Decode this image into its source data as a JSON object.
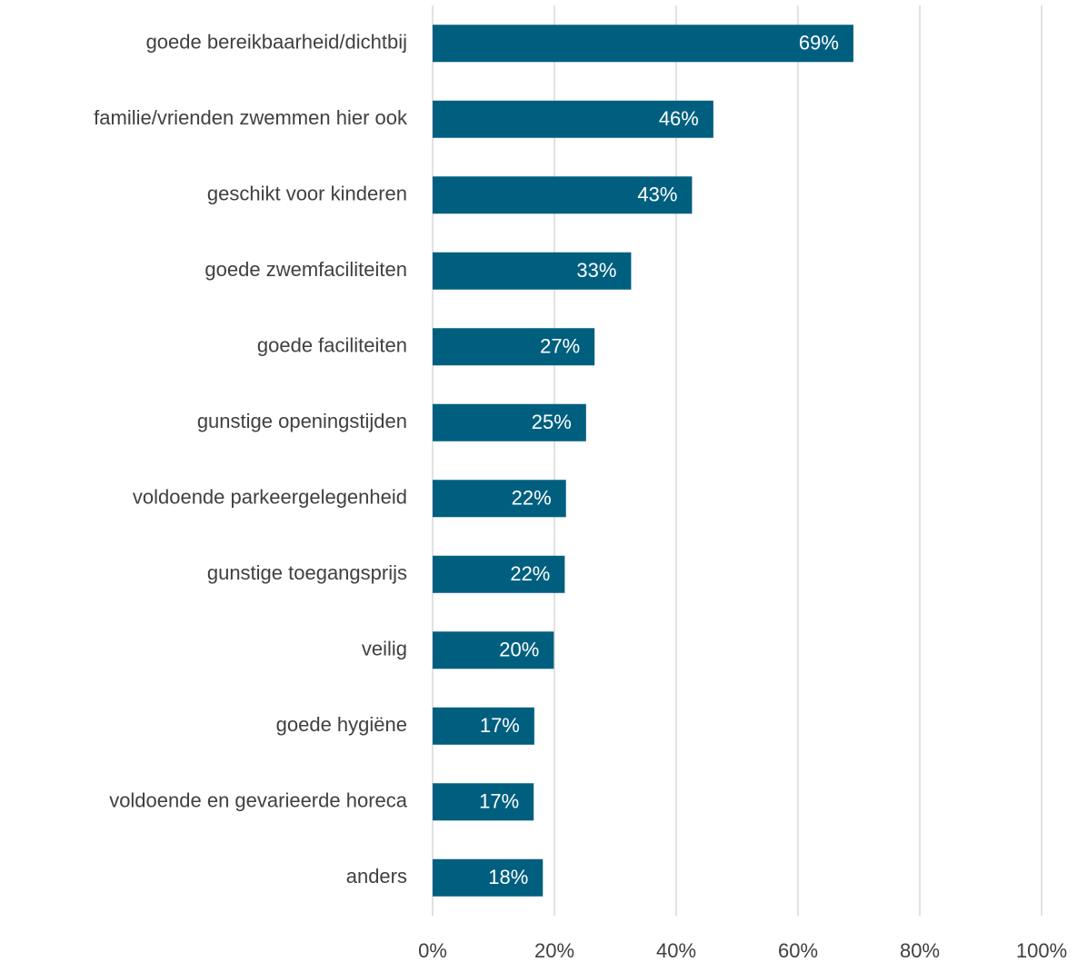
{
  "chart_data": {
    "type": "bar",
    "orientation": "horizontal",
    "categories": [
      "goede bereikbaarheid/dichtbij",
      "familie/vrienden zwemmen hier ook",
      "geschikt voor kinderen",
      "goede zwemfaciliteiten",
      "goede faciliteiten",
      "gunstige openingstijden",
      "voldoende parkeergelegenheid",
      "gunstige toegangsprijs",
      "veilig",
      "goede hygiëne",
      "voldoende en gevarieerde horeca",
      "anders"
    ],
    "values": [
      69.1,
      46.1,
      42.6,
      32.6,
      26.6,
      25.2,
      21.9,
      21.7,
      19.9,
      16.7,
      16.6,
      18.1
    ],
    "value_labels": [
      "69%",
      "46%",
      "43%",
      "33%",
      "27%",
      "25%",
      "22%",
      "22%",
      "20%",
      "17%",
      "17%",
      "18%"
    ],
    "color": "#005f7f",
    "xlim": [
      0,
      100
    ],
    "xticks": [
      {
        "value": 0,
        "label": "0%"
      },
      {
        "value": 20,
        "label": "20%"
      },
      {
        "value": 40,
        "label": "40%"
      },
      {
        "value": 60,
        "label": "60%"
      },
      {
        "value": 80,
        "label": "80%"
      },
      {
        "value": 100,
        "label": "100%"
      }
    ],
    "grid": true
  }
}
